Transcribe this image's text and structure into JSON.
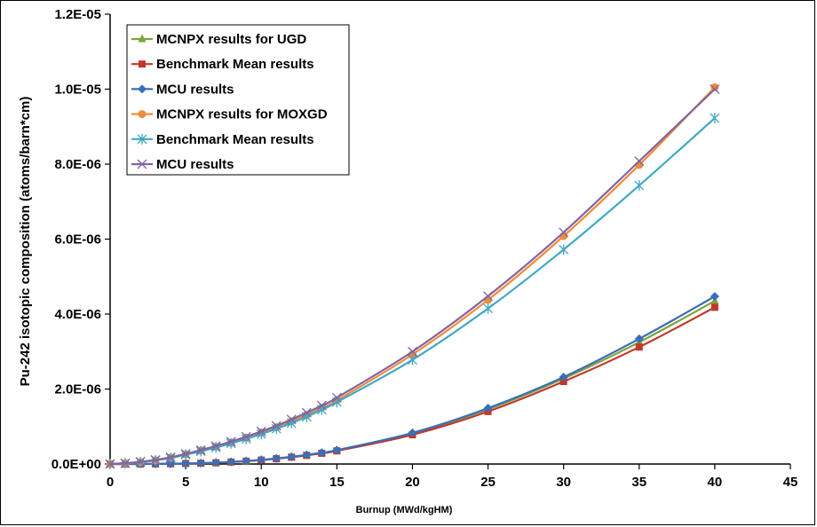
{
  "chart_data": {
    "type": "line",
    "title": "",
    "xlabel": "Burnup (MWd/kgHM)",
    "ylabel": "Pu-242 isotopic composition (atoms/barn*cm)",
    "xlim": [
      0,
      45
    ],
    "ylim": [
      0,
      1.2e-05
    ],
    "xticks": [
      0,
      5,
      10,
      15,
      20,
      25,
      30,
      35,
      40,
      45
    ],
    "xtick_labels": [
      "0",
      "5",
      "10",
      "15",
      "20",
      "25",
      "30",
      "35",
      "40",
      "45"
    ],
    "yticks": [
      0,
      2e-06,
      4e-06,
      6e-06,
      8e-06,
      1e-05,
      1.2e-05
    ],
    "ytick_labels": [
      "0.0E+00",
      "2.0E-06",
      "4.0E-06",
      "6.0E-06",
      "8.0E-06",
      "1.0E-05",
      "1.2E-05"
    ],
    "grid": false,
    "legend_position": "top-left",
    "x": [
      0,
      1,
      2,
      3,
      4,
      5,
      6,
      7,
      8,
      9,
      10,
      11,
      12,
      13,
      14,
      15,
      20,
      25,
      30,
      35,
      40
    ],
    "series": [
      {
        "name": "MCNPX results for UGD",
        "color": "#7fa33a",
        "marker": "triangle",
        "values": [
          0,
          2e-10,
          1e-09,
          3e-09,
          7e-09,
          1.3e-08,
          2.2e-08,
          3.6e-08,
          5.4e-08,
          7.8e-08,
          1.08e-07,
          1.45e-07,
          1.88e-07,
          2.38e-07,
          2.95e-07,
          3.6e-07,
          8.1e-07,
          1.46e-06,
          2.28e-06,
          3.25e-06,
          4.35e-06
        ]
      },
      {
        "name": "Benchmark Mean results",
        "color": "#c0392b",
        "marker": "square",
        "values": [
          0,
          2e-10,
          1e-09,
          3e-09,
          7e-09,
          1.3e-08,
          2.1e-08,
          3.4e-08,
          5.2e-08,
          7.5e-08,
          1.04e-07,
          1.4e-07,
          1.82e-07,
          2.3e-07,
          2.86e-07,
          3.5e-07,
          7.8e-07,
          1.4e-06,
          2.2e-06,
          3.12e-06,
          4.18e-06
        ]
      },
      {
        "name": "MCU results",
        "color": "#3a6fb7",
        "marker": "diamond",
        "values": [
          0,
          2e-10,
          1e-09,
          3e-09,
          7e-09,
          1.4e-08,
          2.3e-08,
          3.7e-08,
          5.6e-08,
          8e-08,
          1.11e-07,
          1.49e-07,
          1.93e-07,
          2.44e-07,
          3.02e-07,
          3.7e-07,
          8.3e-07,
          1.49e-06,
          2.32e-06,
          3.34e-06,
          4.47e-06
        ]
      },
      {
        "name": "MCNPX results for MOXGD",
        "color": "#f08c3a",
        "marker": "circle",
        "values": [
          0,
          2e-08,
          5e-08,
          1e-07,
          1.7e-07,
          2.6e-07,
          3.6e-07,
          4.6e-07,
          5.7e-07,
          7e-07,
          8.4e-07,
          9.8e-07,
          1.14e-06,
          1.31e-06,
          1.5e-06,
          1.7e-06,
          2.92e-06,
          4.38e-06,
          6.08e-06,
          7.98e-06,
          1.005e-05
        ]
      },
      {
        "name": "Benchmark Mean results",
        "color": "#3fa8c4",
        "marker": "star",
        "values": [
          0,
          2e-08,
          5e-08,
          1e-07,
          1.6e-07,
          2.5e-07,
          3.4e-07,
          4.4e-07,
          5.5e-07,
          6.7e-07,
          8e-07,
          9.4e-07,
          1.09e-06,
          1.26e-06,
          1.45e-06,
          1.65e-06,
          2.78e-06,
          4.15e-06,
          5.72e-06,
          7.43e-06,
          9.23e-06
        ]
      },
      {
        "name": "MCU results",
        "color": "#8064a2",
        "marker": "x",
        "values": [
          0,
          2e-08,
          6e-08,
          1.1e-07,
          1.8e-07,
          2.7e-07,
          3.7e-07,
          4.8e-07,
          6e-07,
          7.3e-07,
          8.7e-07,
          1.02e-06,
          1.19e-06,
          1.37e-06,
          1.56e-06,
          1.77e-06,
          3e-06,
          4.48e-06,
          6.18e-06,
          8.08e-06,
          1e-05
        ]
      }
    ]
  }
}
